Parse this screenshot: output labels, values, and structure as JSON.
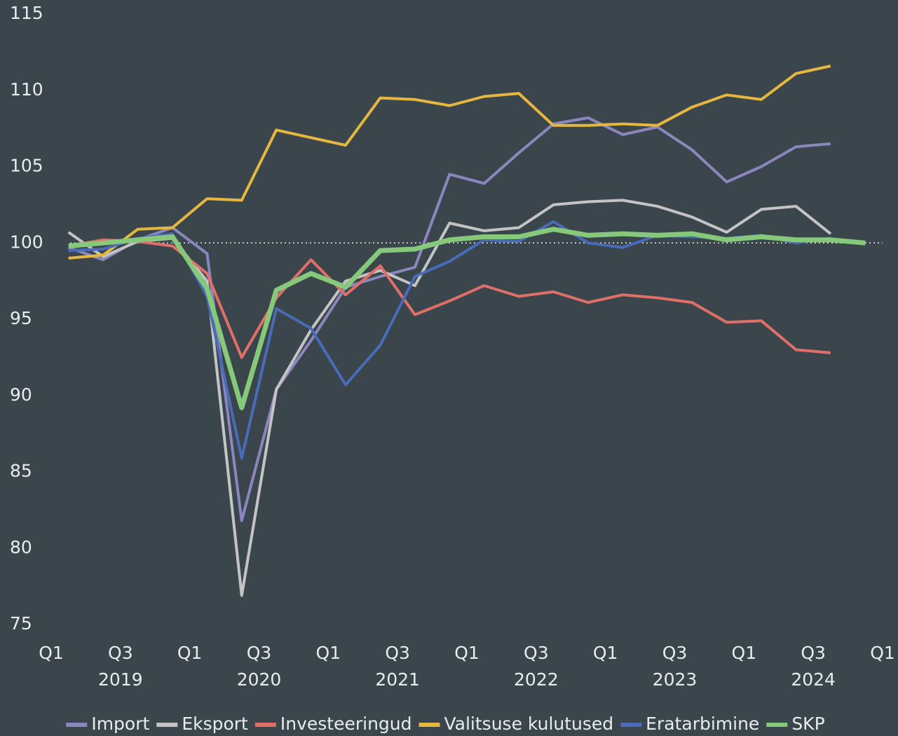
{
  "chart_data": {
    "type": "line",
    "categories": [
      "Q1",
      null,
      "Q3",
      null,
      "Q1",
      null,
      "Q3",
      null,
      "Q1",
      null,
      "Q3",
      null,
      "Q1",
      null,
      "Q3",
      null,
      "Q1",
      null,
      "Q3",
      null,
      "Q1",
      null,
      "Q3",
      null
    ],
    "end_label": "Q1",
    "years": [
      "2019",
      "2020",
      "2021",
      "2022",
      "2023",
      "2024"
    ],
    "ylim": [
      75,
      115
    ],
    "yticks": [
      75,
      80,
      85,
      90,
      95,
      100,
      105,
      110,
      115
    ],
    "reference_line": 100,
    "series": [
      {
        "name": "Import",
        "color": "#8b86bd",
        "values": [
          99.7,
          98.9,
          100.2,
          101.0,
          99.3,
          81.8,
          90.4,
          93.6,
          97.1,
          97.8,
          98.4,
          104.5,
          103.9,
          105.9,
          107.8,
          108.2,
          107.1,
          107.6,
          106.1,
          104.0,
          105.0,
          106.3,
          106.5,
          null
        ]
      },
      {
        "name": "Eksport",
        "color": "#c4c4c4",
        "values": [
          100.7,
          99.1,
          100.1,
          100.3,
          97.5,
          76.9,
          90.4,
          94.3,
          97.5,
          98.2,
          97.2,
          101.3,
          100.8,
          101.0,
          102.5,
          102.7,
          102.8,
          102.4,
          101.7,
          100.7,
          102.2,
          102.4,
          100.6,
          null
        ]
      },
      {
        "name": "Investeeringud",
        "color": "#e06f67",
        "values": [
          99.8,
          100.2,
          100.1,
          99.8,
          98.0,
          92.5,
          96.4,
          98.9,
          96.6,
          98.5,
          95.3,
          96.2,
          97.2,
          96.5,
          96.8,
          96.1,
          96.6,
          96.4,
          96.1,
          94.8,
          94.9,
          93.0,
          92.8,
          null
        ]
      },
      {
        "name": "Valitsuse kulutused",
        "color": "#e6b73e",
        "values": [
          99.0,
          99.2,
          100.9,
          101.0,
          102.9,
          102.8,
          107.4,
          106.9,
          106.4,
          109.5,
          109.4,
          109.0,
          109.6,
          109.8,
          107.7,
          107.7,
          107.8,
          107.7,
          108.9,
          109.7,
          109.4,
          111.1,
          111.6,
          null
        ]
      },
      {
        "name": "Eratarbimine",
        "color": "#4a6bb8",
        "values": [
          99.5,
          99.6,
          100.3,
          100.6,
          96.5,
          85.9,
          95.7,
          94.4,
          90.7,
          93.3,
          97.8,
          98.8,
          100.2,
          100.1,
          101.4,
          100.0,
          99.7,
          100.5,
          100.4,
          100.3,
          100.5,
          100.0,
          100.3,
          null
        ]
      },
      {
        "name": "SKP",
        "color": "#86c97a",
        "values": [
          99.8,
          100.0,
          100.2,
          100.4,
          97.0,
          89.2,
          96.9,
          98.0,
          97.1,
          99.5,
          99.6,
          100.2,
          100.4,
          100.4,
          100.9,
          100.5,
          100.6,
          100.5,
          100.6,
          100.2,
          100.4,
          100.2,
          100.2,
          100.0
        ]
      }
    ]
  }
}
